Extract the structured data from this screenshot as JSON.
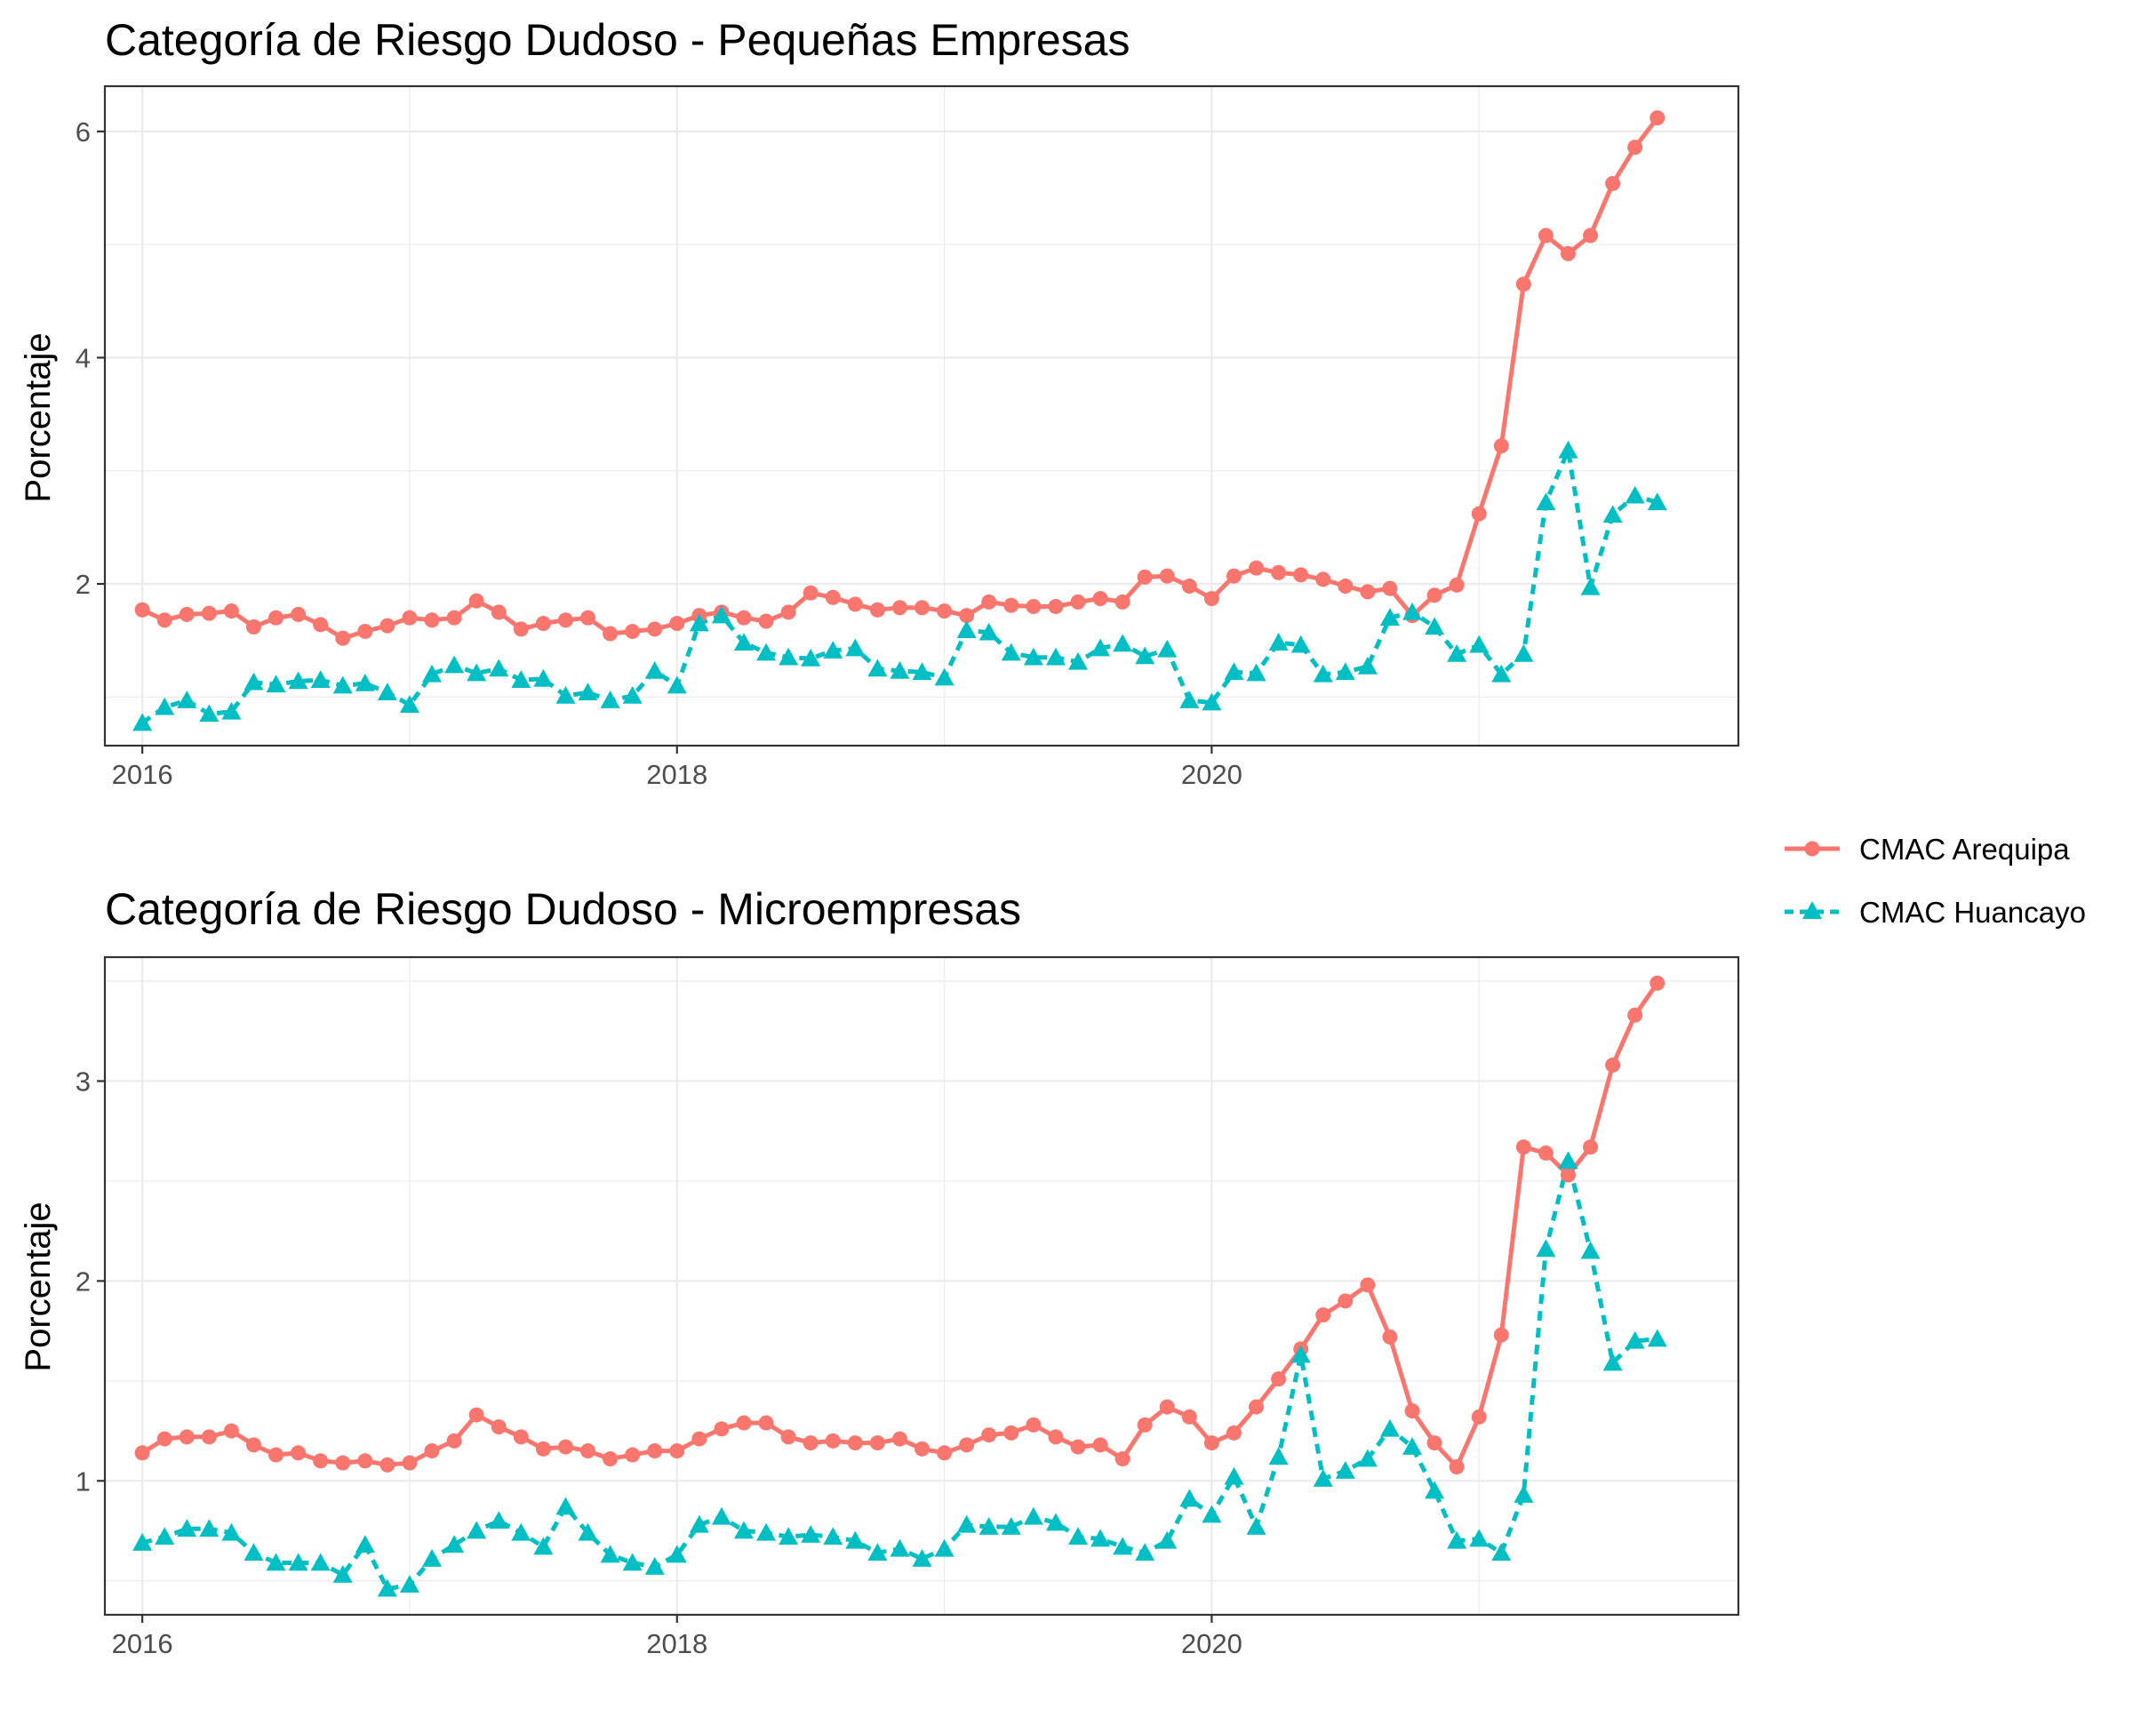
{
  "colors": {
    "arequipa": "#F8766D",
    "huancayo": "#00BFC4",
    "grid": "#EBEBEB",
    "panel_border": "#333333"
  },
  "legend": {
    "placement": "right",
    "items": [
      {
        "label": "CMAC Arequipa",
        "color": "#F8766D",
        "shape": "circle",
        "line": "solid"
      },
      {
        "label": "CMAC Huancayo",
        "color": "#00BFC4",
        "shape": "triangle",
        "line": "dashed"
      }
    ]
  },
  "chart_data": [
    {
      "type": "line",
      "title": "Categoría de Riesgo Dudoso - Pequeñas Empresas",
      "xlabel": "",
      "ylabel": "Porcentaje",
      "x_start": "2016-01",
      "x_step": "1 month",
      "xlim": [
        2015.86,
        2021.97
      ],
      "ylim": [
        0.57,
        6.4
      ],
      "x_ticks": [
        {
          "value": 2016,
          "label": "2016"
        },
        {
          "value": 2018,
          "label": "2018"
        },
        {
          "value": 2020,
          "label": "2020"
        }
      ],
      "y_ticks": [
        {
          "value": 2,
          "label": "2"
        },
        {
          "value": 4,
          "label": "4"
        },
        {
          "value": 6,
          "label": "6"
        }
      ],
      "grid": true,
      "series": [
        {
          "name": "CMAC Arequipa",
          "color": "#F8766D",
          "marker": "circle",
          "dash": false,
          "values": [
            1.77,
            1.68,
            1.73,
            1.74,
            1.76,
            1.62,
            1.7,
            1.73,
            1.64,
            1.52,
            1.58,
            1.63,
            1.7,
            1.68,
            1.7,
            1.85,
            1.75,
            1.6,
            1.65,
            1.68,
            1.7,
            1.56,
            1.58,
            1.6,
            1.65,
            1.72,
            1.75,
            1.7,
            1.67,
            1.75,
            1.92,
            1.88,
            1.82,
            1.77,
            1.79,
            1.79,
            1.76,
            1.72,
            1.84,
            1.81,
            1.8,
            1.8,
            1.84,
            1.87,
            1.84,
            2.06,
            2.07,
            1.98,
            1.87,
            2.07,
            2.14,
            2.1,
            2.08,
            2.04,
            1.98,
            1.93,
            1.96,
            1.72,
            1.9,
            1.99,
            2.62,
            3.22,
            4.65,
            5.08,
            4.92,
            5.08,
            5.54,
            5.86,
            6.12
          ]
        },
        {
          "name": "CMAC Huancayo",
          "color": "#00BFC4",
          "marker": "triangle",
          "dash": true,
          "values": [
            0.77,
            0.91,
            0.97,
            0.85,
            0.87,
            1.13,
            1.11,
            1.14,
            1.15,
            1.1,
            1.12,
            1.04,
            0.93,
            1.2,
            1.28,
            1.21,
            1.25,
            1.15,
            1.16,
            1.01,
            1.04,
            0.97,
            1.01,
            1.23,
            1.1,
            1.65,
            1.72,
            1.48,
            1.39,
            1.35,
            1.34,
            1.41,
            1.43,
            1.25,
            1.23,
            1.22,
            1.17,
            1.59,
            1.57,
            1.39,
            1.35,
            1.35,
            1.31,
            1.43,
            1.47,
            1.36,
            1.42,
            0.97,
            0.95,
            1.22,
            1.21,
            1.48,
            1.46,
            1.2,
            1.22,
            1.27,
            1.7,
            1.75,
            1.62,
            1.38,
            1.46,
            1.2,
            1.38,
            2.72,
            3.18,
            1.97,
            2.61,
            2.78,
            2.72
          ]
        }
      ]
    },
    {
      "type": "line",
      "title": "Categoría de Riesgo Dudoso - Microempresas",
      "xlabel": "",
      "ylabel": "Porcentaje",
      "x_start": "2016-01",
      "x_step": "1 month",
      "xlim": [
        2015.86,
        2021.97
      ],
      "ylim": [
        0.33,
        3.62
      ],
      "x_ticks": [
        {
          "value": 2016,
          "label": "2016"
        },
        {
          "value": 2018,
          "label": "2018"
        },
        {
          "value": 2020,
          "label": "2020"
        }
      ],
      "y_ticks": [
        {
          "value": 1,
          "label": "1"
        },
        {
          "value": 2,
          "label": "2"
        },
        {
          "value": 3,
          "label": "3"
        }
      ],
      "grid": true,
      "series": [
        {
          "name": "CMAC Arequipa",
          "color": "#F8766D",
          "marker": "circle",
          "dash": false,
          "values": [
            1.14,
            1.21,
            1.22,
            1.22,
            1.25,
            1.18,
            1.13,
            1.14,
            1.1,
            1.09,
            1.1,
            1.08,
            1.09,
            1.15,
            1.2,
            1.33,
            1.27,
            1.22,
            1.16,
            1.17,
            1.15,
            1.11,
            1.13,
            1.15,
            1.15,
            1.21,
            1.26,
            1.29,
            1.29,
            1.22,
            1.19,
            1.2,
            1.19,
            1.19,
            1.21,
            1.16,
            1.14,
            1.18,
            1.23,
            1.24,
            1.28,
            1.22,
            1.17,
            1.18,
            1.11,
            1.28,
            1.37,
            1.32,
            1.19,
            1.24,
            1.37,
            1.51,
            1.66,
            1.83,
            1.9,
            1.98,
            1.72,
            1.35,
            1.19,
            1.07,
            1.32,
            1.73,
            2.67,
            2.64,
            2.53,
            2.67,
            3.08,
            3.33,
            3.49
          ]
        },
        {
          "name": "CMAC Huancayo",
          "color": "#00BFC4",
          "marker": "triangle",
          "dash": true,
          "values": [
            0.69,
            0.72,
            0.76,
            0.76,
            0.74,
            0.64,
            0.59,
            0.59,
            0.59,
            0.53,
            0.68,
            0.46,
            0.48,
            0.61,
            0.68,
            0.75,
            0.8,
            0.74,
            0.67,
            0.87,
            0.74,
            0.63,
            0.59,
            0.57,
            0.63,
            0.78,
            0.82,
            0.75,
            0.74,
            0.72,
            0.73,
            0.72,
            0.7,
            0.64,
            0.66,
            0.61,
            0.66,
            0.78,
            0.77,
            0.77,
            0.82,
            0.79,
            0.72,
            0.71,
            0.67,
            0.64,
            0.7,
            0.91,
            0.83,
            1.02,
            0.77,
            1.12,
            1.63,
            1.01,
            1.05,
            1.11,
            1.26,
            1.17,
            0.95,
            0.7,
            0.71,
            0.64,
            0.93,
            2.16,
            2.6,
            2.15,
            1.59,
            1.7,
            1.71
          ]
        }
      ]
    }
  ]
}
